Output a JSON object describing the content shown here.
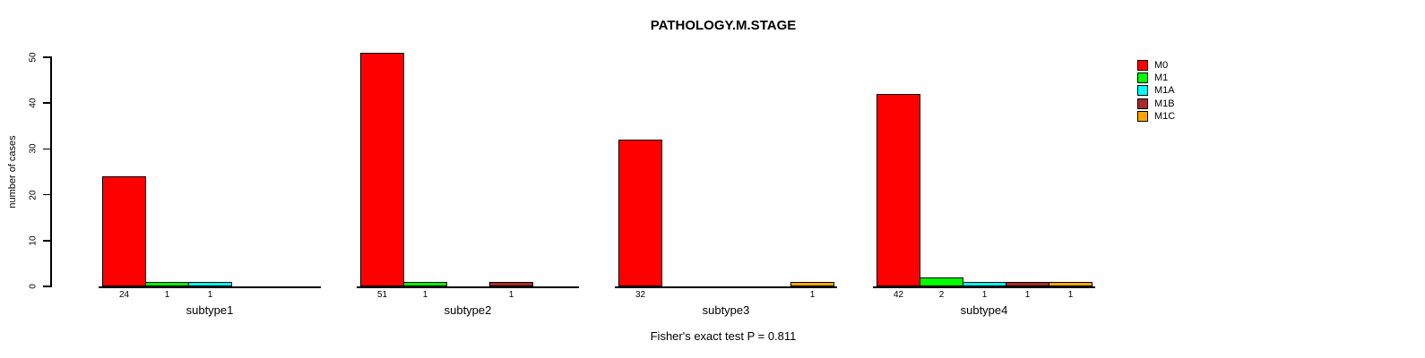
{
  "chart_data": {
    "type": "bar",
    "title": "PATHOLOGY.M.STAGE",
    "ylabel": "number of cases",
    "xlabel": "",
    "ylim": [
      0,
      50
    ],
    "yticks": [
      0,
      10,
      20,
      30,
      40,
      50
    ],
    "grid": false,
    "legend_position": "right",
    "categories": [
      "M0",
      "M1",
      "M1A",
      "M1B",
      "M1C"
    ],
    "series_colors": [
      "#FF0000",
      "#00FF00",
      "#00FFFF",
      "#A52A2A",
      "#FFA500"
    ],
    "groups": [
      {
        "label": "subtype1",
        "values": [
          24,
          1,
          1,
          0,
          0
        ]
      },
      {
        "label": "subtype2",
        "values": [
          51,
          1,
          0,
          1,
          0
        ]
      },
      {
        "label": "subtype3",
        "values": [
          32,
          0,
          0,
          0,
          1
        ]
      },
      {
        "label": "subtype4",
        "values": [
          42,
          2,
          1,
          1,
          1
        ]
      }
    ],
    "bar_value_labels": "nonzero bar values printed below x-axis",
    "footnote": "Fisher's exact test P = 0.811"
  }
}
